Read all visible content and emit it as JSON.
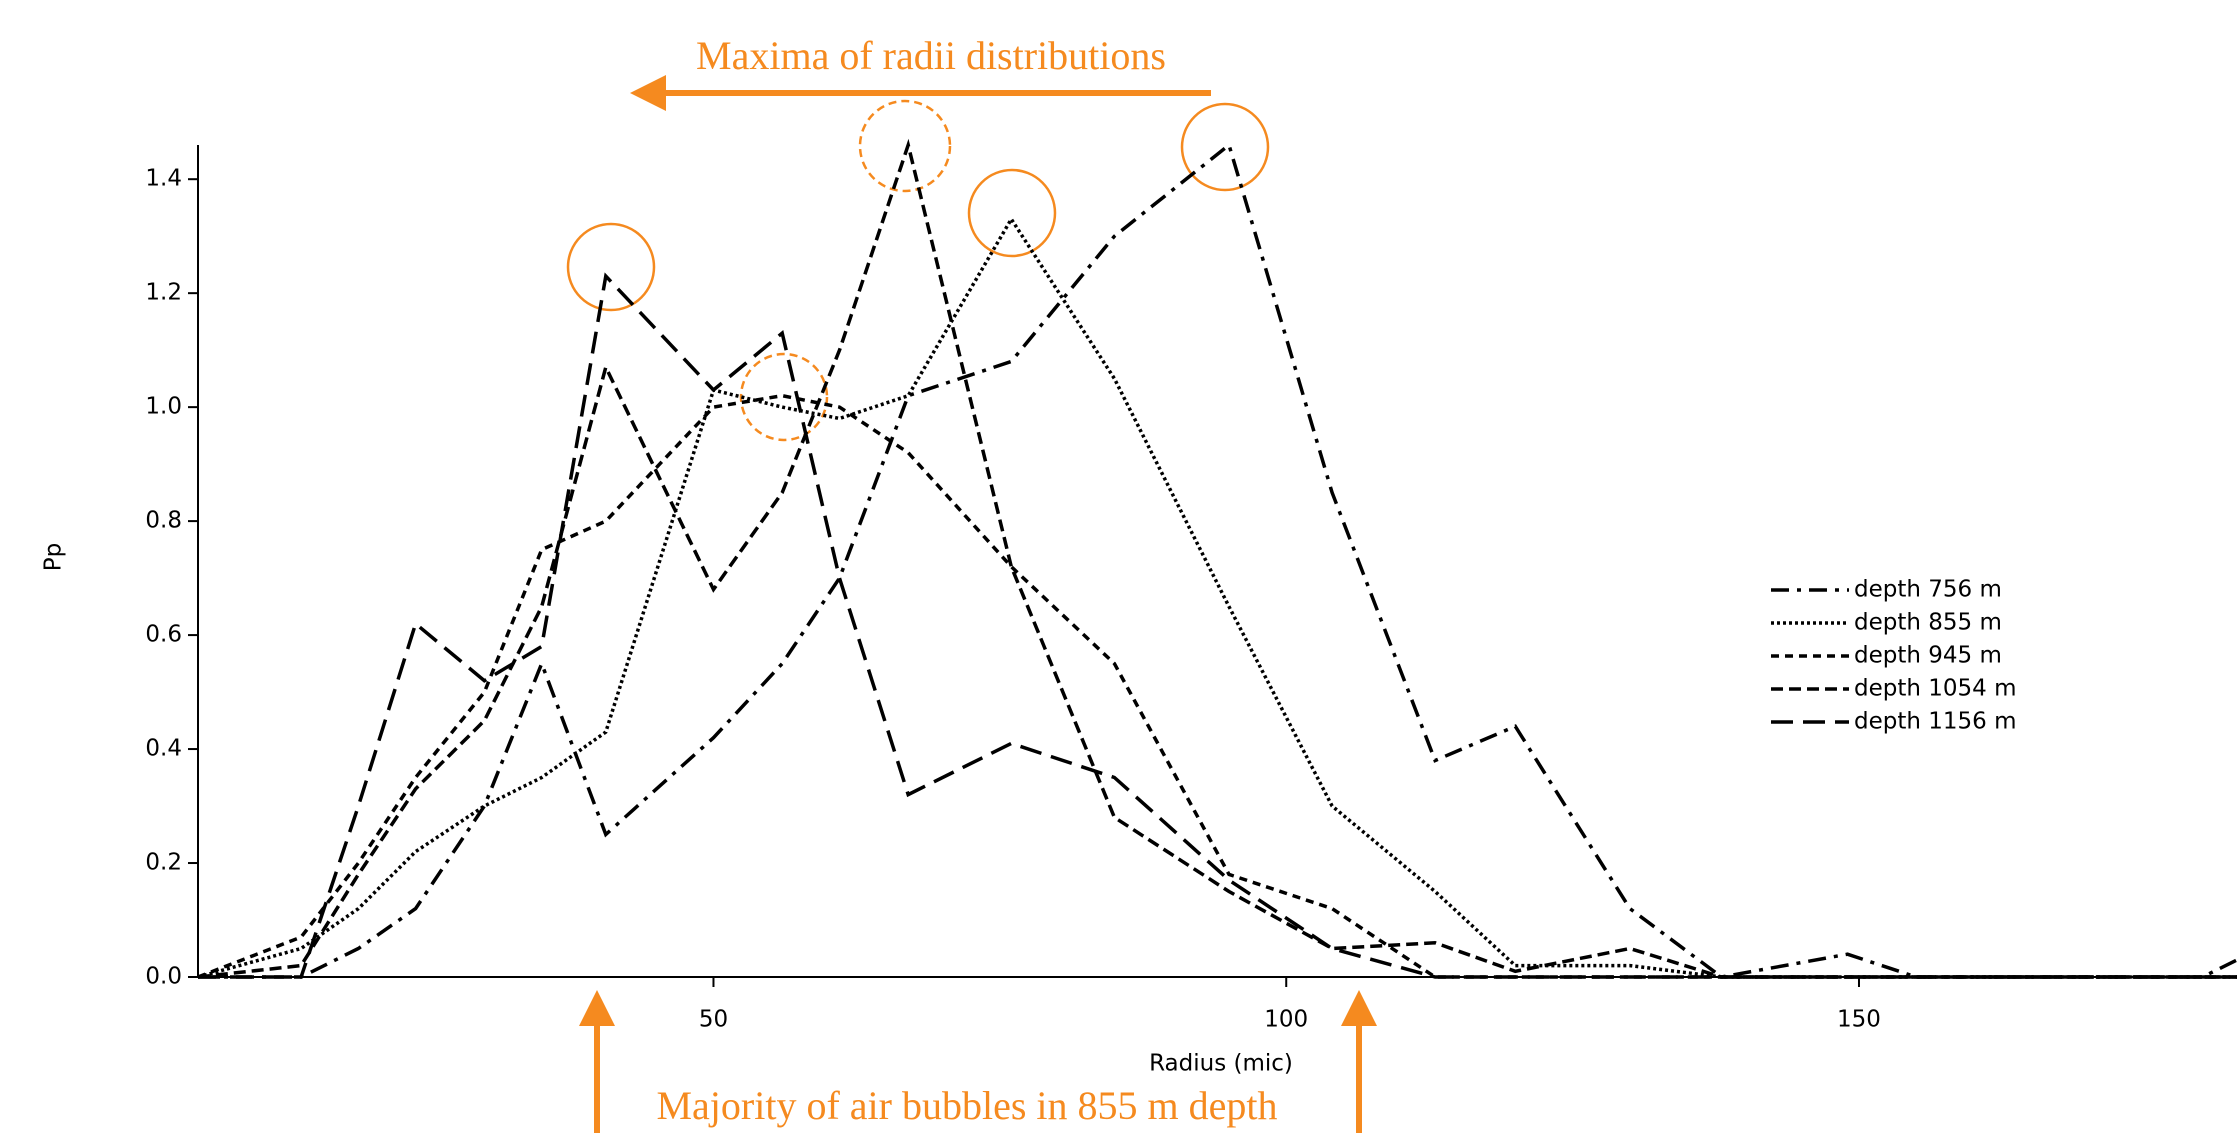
{
  "chart_data": {
    "type": "line",
    "annotations": [
      "Maxima of radii distributions",
      "Majority of air bubbles in 855 m depth"
    ],
    "x_label": "Radius (mic)",
    "y_label": "Pp",
    "x": [
      5,
      14,
      19,
      24,
      30,
      35,
      40.6,
      50,
      56,
      61,
      67,
      76,
      85,
      95,
      104,
      113,
      120,
      130,
      138,
      149,
      155,
      180,
      183
    ],
    "series": [
      {
        "name": "depth 756 m",
        "color": "#000000",
        "dash": "18,8,4,8",
        "values": [
          0,
          0,
          0.05,
          0.12,
          0.3,
          0.55,
          0.25,
          0.42,
          0.55,
          0.7,
          1.02,
          1.08,
          1.3,
          1.46,
          0.85,
          0.38,
          0.44,
          0.12,
          0,
          0.04,
          0,
          0,
          0.03
        ]
      },
      {
        "name": "depth 855 m",
        "color": "#000000",
        "dash": "3,3",
        "values": [
          0,
          0.05,
          0.12,
          0.22,
          0.3,
          0.35,
          0.43,
          1.03,
          1.0,
          0.98,
          1.02,
          1.33,
          1.05,
          0.65,
          0.3,
          0.15,
          0.02,
          0.02,
          0,
          0,
          0,
          0,
          0
        ]
      },
      {
        "name": "depth 945 m",
        "color": "#000000",
        "dash": "8,6",
        "values": [
          0,
          0.07,
          0.2,
          0.35,
          0.5,
          0.75,
          0.8,
          1.0,
          1.02,
          1.0,
          0.92,
          0.72,
          0.55,
          0.18,
          0.12,
          0,
          0,
          0,
          0,
          0,
          0,
          0,
          0
        ]
      },
      {
        "name": "depth 1054 m",
        "color": "#000000",
        "dash": "12,6",
        "values": [
          0,
          0.02,
          0.18,
          0.33,
          0.45,
          0.65,
          1.07,
          0.68,
          0.85,
          1.1,
          1.46,
          0.72,
          0.28,
          0.15,
          0.05,
          0.06,
          0.01,
          0.05,
          0,
          0,
          0,
          0,
          0
        ]
      },
      {
        "name": "depth 1156 m",
        "color": "#000000",
        "dash": "22,10",
        "values": [
          0,
          0,
          0.3,
          0.62,
          0.52,
          0.58,
          1.23,
          1.03,
          1.13,
          0.7,
          0.32,
          0.41,
          0.35,
          0.17,
          0.05,
          0,
          0,
          0,
          0,
          0,
          0,
          0,
          0
        ]
      }
    ],
    "xlim": [
      5,
      183
    ],
    "ylim": [
      0,
      1.46
    ],
    "xticks": [
      50,
      100,
      150
    ],
    "yticks": [
      {
        "value": 0,
        "label": "0.0"
      },
      0.2,
      0.4,
      0.6,
      0.8,
      {
        "value": 1,
        "label": "1.0"
      },
      1.2,
      1.4
    ],
    "legend": "right"
  }
}
